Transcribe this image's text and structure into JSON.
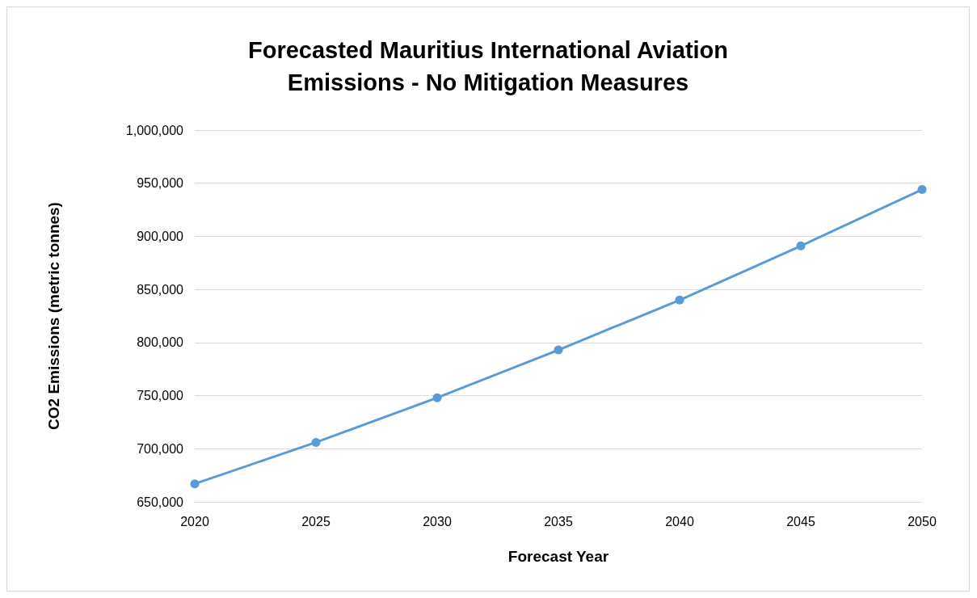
{
  "chart_data": {
    "type": "line",
    "title": "Forecasted Mauritius International Aviation\nEmissions - No Mitigation Measures",
    "xlabel": "Forecast Year",
    "ylabel": "CO2 Emissions (metric tonnes)",
    "categories": [
      "2020",
      "2025",
      "2030",
      "2035",
      "2040",
      "2045",
      "2050"
    ],
    "series": [
      {
        "color": "#5b9bd5",
        "values": [
          667000,
          706000,
          748000,
          793000,
          840000,
          891000,
          944000
        ]
      }
    ],
    "ylim": [
      650000,
      1000000
    ],
    "yticks": [
      {
        "value": 650000,
        "label": "650,000"
      },
      {
        "value": 700000,
        "label": "700,000"
      },
      {
        "value": 750000,
        "label": "750,000"
      },
      {
        "value": 800000,
        "label": "800,000"
      },
      {
        "value": 850000,
        "label": "850,000"
      },
      {
        "value": 900000,
        "label": "900,000"
      },
      {
        "value": 950000,
        "label": "950,000"
      },
      {
        "value": 1000000,
        "label": "1,000,000"
      }
    ],
    "grid": "y",
    "marker": "circle",
    "line_style": "solid"
  }
}
